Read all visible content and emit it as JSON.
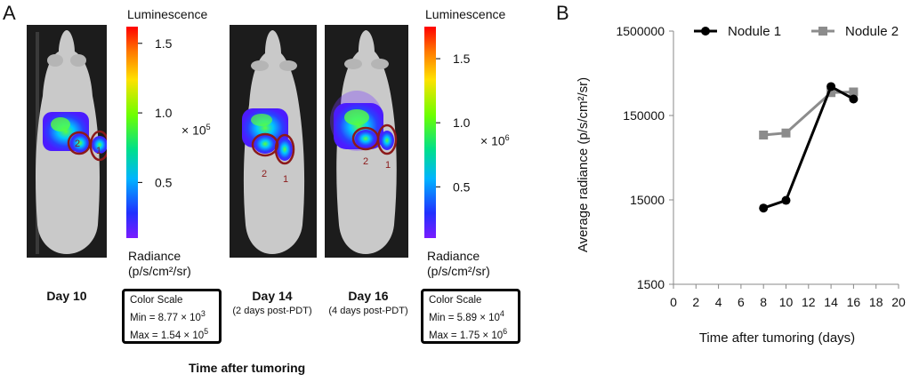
{
  "panel_a": {
    "label": "A",
    "colorbar_1": {
      "title": "Luminescence",
      "ticks": [
        "1.5",
        "1.0",
        "0.5"
      ],
      "tick_values": [
        1.5,
        1.0,
        0.5
      ],
      "range": [
        0.1,
        1.62
      ],
      "multiplier": "× 10",
      "multiplier_exp": "5",
      "unit_label": "Radiance",
      "unit_line2": "(p/s/cm²/sr)"
    },
    "colorbar_2": {
      "title": "Luminescence",
      "ticks": [
        "1.5",
        "1.0",
        "0.5"
      ],
      "tick_values": [
        1.5,
        1.0,
        0.5
      ],
      "range": [
        0.1,
        1.75
      ],
      "multiplier": "× 10",
      "multiplier_exp": "6",
      "unit_label": "Radiance",
      "unit_line2": "(p/s/cm²/sr)"
    },
    "mice": [
      {
        "day": "Day 10",
        "sub": "",
        "nodule_labels": [
          "2",
          "1"
        ]
      },
      {
        "day": "Day 14",
        "sub": "(2 days post-PDT)",
        "nodule_labels": [
          "2",
          "1"
        ]
      },
      {
        "day": "Day 16",
        "sub": "(4 days post-PDT)",
        "nodule_labels": [
          "2",
          "1"
        ]
      }
    ],
    "scale_box_1": {
      "title": "Color Scale",
      "min_label": "Min = 8.77 × 10",
      "min_exp": "3",
      "max_label": "Max = 1.54 × 10",
      "max_exp": "5"
    },
    "scale_box_2": {
      "title": "Color Scale",
      "min_label": "Min = 5.89 × 10",
      "min_exp": "4",
      "max_label": "Max = 1.75 × 10",
      "max_exp": "6"
    },
    "x_title": "Time after tumoring"
  },
  "panel_b": {
    "label": "B"
  },
  "colors": {
    "nodule_1": "#000000",
    "nodule_2": "#8c8c8c",
    "roi": "#8b1a1a",
    "mouse_bg": "#1c1c1c"
  },
  "chart_data": {
    "type": "line",
    "title": "",
    "xlabel": "Time after tumoring (days)",
    "ylabel": "Average radiance (p/s/cm²/sr)",
    "y_scale": "log",
    "xlim": [
      0,
      20
    ],
    "ylim": [
      1500,
      1500000
    ],
    "x_ticks": [
      0,
      2,
      4,
      6,
      8,
      10,
      12,
      14,
      16,
      18,
      20
    ],
    "y_ticks": [
      1500,
      15000,
      150000,
      1500000
    ],
    "y_tick_labels": [
      "1500",
      "15000",
      "150000",
      "1500000"
    ],
    "legend_position": "top",
    "series": [
      {
        "name": "Nodule 1",
        "marker": "circle",
        "x": [
          8,
          10,
          14,
          16
        ],
        "y": [
          12000,
          14800,
          330000,
          235000
        ]
      },
      {
        "name": "Nodule 2",
        "marker": "square",
        "x": [
          8,
          10,
          14,
          16
        ],
        "y": [
          88000,
          93000,
          280000,
          285000
        ]
      }
    ]
  }
}
